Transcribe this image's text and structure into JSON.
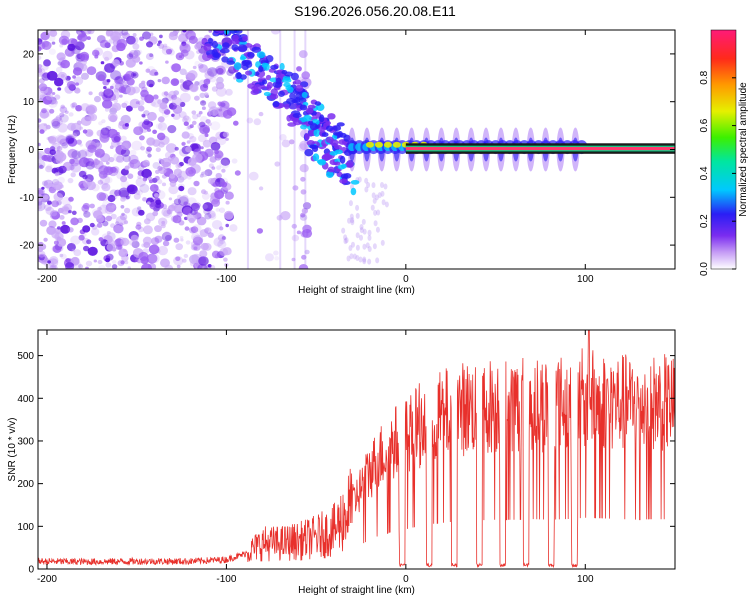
{
  "title": "S196.2026.056.20.08.E11",
  "colors": {
    "snr_line": "#e8302b",
    "noise": "#8a3cf0",
    "signal": "#ff3a6e"
  },
  "chart_data": [
    {
      "type": "heatmap",
      "xlabel": "Height of straight line (km)",
      "ylabel": "Frequency (Hz)",
      "xlim": [
        -205,
        150
      ],
      "ylim": [
        -25,
        25
      ],
      "x_ticks": [
        "-200",
        "-100",
        "0",
        "100"
      ],
      "x_tick_values": [
        -200,
        -100,
        0,
        100
      ],
      "y_ticks": [
        "-20",
        "-10",
        "0",
        "10",
        "20"
      ],
      "y_tick_values": [
        -20,
        -10,
        0,
        10,
        20
      ],
      "features": [
        {
          "name": "noise field",
          "x_range": [
            -205,
            -55
          ],
          "freq_range": [
            -25,
            25
          ]
        },
        {
          "name": "rising signal track",
          "x_range": [
            -110,
            -55
          ],
          "freq_range": [
            8,
            25
          ]
        },
        {
          "name": "signal carrier",
          "x_range": [
            -20,
            150
          ],
          "freq": 0.2
        }
      ],
      "colorbar": {
        "label": "Normalized spectral amplitude",
        "range": [
          0.0,
          1.0
        ],
        "ticks": [
          "0.0",
          "0.2",
          "0.4",
          "0.6",
          "0.8"
        ],
        "tick_values": [
          0.0,
          0.2,
          0.4,
          0.6,
          0.8
        ]
      }
    },
    {
      "type": "line",
      "xlabel": "Height of straight line (km)",
      "ylabel": "SNR (10 * v/v)",
      "xlim": [
        -205,
        150
      ],
      "ylim": [
        0,
        560
      ],
      "x_ticks": [
        "-200",
        "-100",
        "0",
        "100"
      ],
      "x_tick_values": [
        -200,
        -100,
        0,
        100
      ],
      "y_ticks": [
        "0",
        "100",
        "200",
        "300",
        "400",
        "500"
      ],
      "y_tick_values": [
        0,
        100,
        200,
        300,
        400,
        500
      ],
      "series": [
        {
          "name": "SNR",
          "x": [
            -205,
            -180,
            -150,
            -120,
            -100,
            -90,
            -80,
            -70,
            -60,
            -50,
            -40,
            -30,
            -20,
            -15,
            -10,
            -5,
            0,
            10,
            20,
            30,
            40,
            50,
            60,
            70,
            80,
            90,
            100,
            110,
            120,
            130,
            140,
            150
          ],
          "y": [
            18,
            17,
            18,
            18,
            22,
            35,
            60,
            60,
            65,
            75,
            90,
            150,
            230,
            260,
            280,
            300,
            310,
            345,
            360,
            375,
            380,
            385,
            385,
            390,
            385,
            390,
            400,
            395,
            390,
            385,
            390,
            385
          ]
        }
      ],
      "dropouts_x": [
        -2,
        13,
        27,
        41,
        54,
        67,
        81,
        94
      ],
      "peak": {
        "x": 102,
        "y": 560
      }
    }
  ]
}
